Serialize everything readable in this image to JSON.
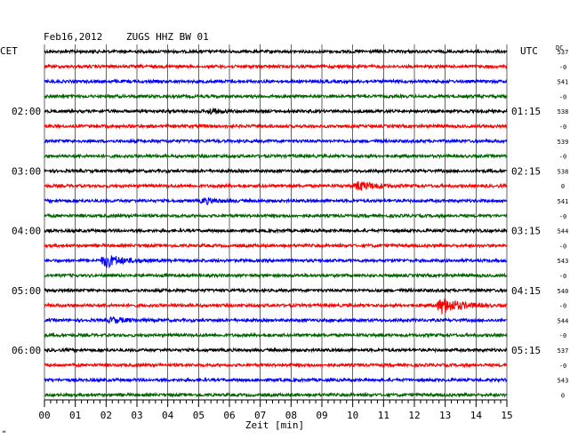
{
  "header": {
    "date": "Feb16,2012",
    "station": "ZUGS HHZ BW 01",
    "left_zone": "CET",
    "right_zone": "UTC",
    "dc_label": "DC",
    "footer_mark": "„"
  },
  "chart_data": {
    "type": "line",
    "title": "Feb16,2012  ZUGS HHZ BW 01",
    "xlabel": "Zeit [min]",
    "xlim": [
      0,
      15
    ],
    "x_ticks": [
      "00",
      "01",
      "02",
      "03",
      "04",
      "05",
      "06",
      "07",
      "08",
      "09",
      "10",
      "11",
      "12",
      "13",
      "14",
      "15"
    ],
    "grid": true,
    "left_axis_labels": [
      {
        "row": 4,
        "label": "02:00"
      },
      {
        "row": 8,
        "label": "03:00"
      },
      {
        "row": 12,
        "label": "04:00"
      },
      {
        "row": 16,
        "label": "05:00"
      },
      {
        "row": 20,
        "label": "06:00"
      }
    ],
    "right_axis_labels": [
      {
        "row": 4,
        "label": "01:15"
      },
      {
        "row": 8,
        "label": "02:15"
      },
      {
        "row": 12,
        "label": "03:15"
      },
      {
        "row": 16,
        "label": "04:15"
      },
      {
        "row": 20,
        "label": "05:15"
      }
    ],
    "dc_values": [
      "537",
      "-0",
      "541",
      "-0",
      "538",
      "-0",
      "539",
      "-0",
      "538",
      "0",
      "541",
      "-0",
      "544",
      "-0",
      "543",
      "-0",
      "540",
      "-0",
      "544",
      "-0",
      "537",
      "-0",
      "543",
      "0"
    ],
    "colors": [
      "#000000",
      "#ff0000",
      "#0000ff",
      "#006400"
    ],
    "trace_count": 24,
    "events": [
      {
        "row": 9,
        "minute": 10.2,
        "amplitude": 5,
        "duration_min": 1.5
      },
      {
        "row": 14,
        "minute": 2.0,
        "amplitude": 7,
        "duration_min": 1.5
      },
      {
        "row": 17,
        "minute": 12.9,
        "amplitude": 9,
        "duration_min": 1.6
      },
      {
        "row": 18,
        "minute": 2.2,
        "amplitude": 3,
        "duration_min": 1.2
      },
      {
        "row": 4,
        "minute": 5.4,
        "amplitude": 3,
        "duration_min": 0.8
      },
      {
        "row": 10,
        "minute": 5.2,
        "amplitude": 3,
        "duration_min": 1.2
      }
    ]
  }
}
